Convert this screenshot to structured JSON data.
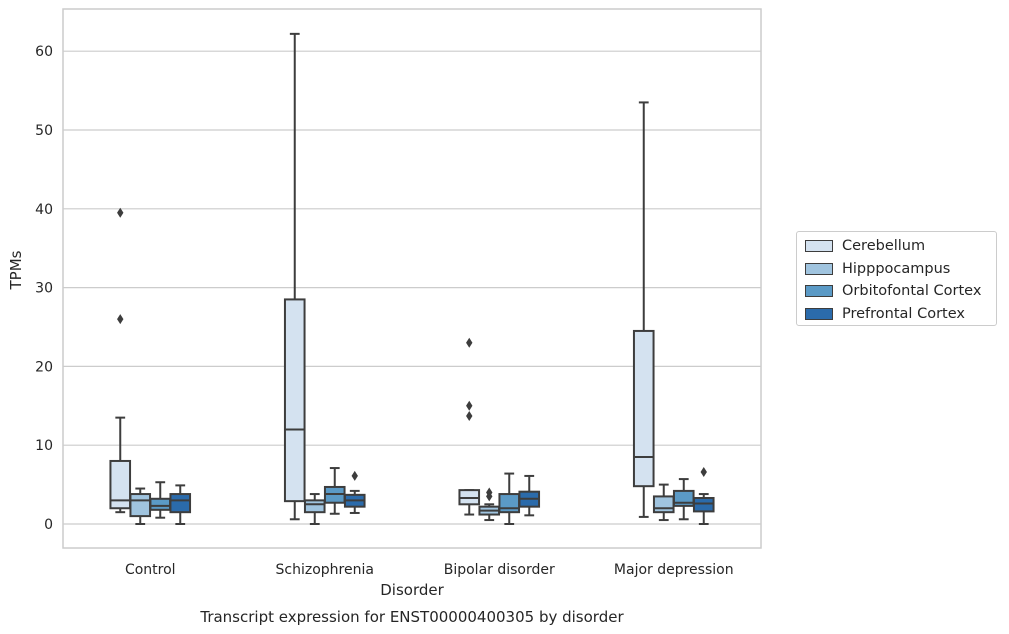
{
  "chart_data": {
    "type": "box",
    "title": "Transcript expression for ENST00000400305 by disorder",
    "xlabel": "Disorder",
    "ylabel": "TPMs",
    "ylim": [
      -3,
      65
    ],
    "yticks": [
      0,
      10,
      20,
      30,
      40,
      50,
      60
    ],
    "grid": true,
    "legend_position": "center-right",
    "categories": [
      "Control",
      "Schizophrenia",
      "Bipolar disorder",
      "Major depression"
    ],
    "series": [
      {
        "name": "Cerebellum",
        "color": "#d4e2f0",
        "boxes": [
          {
            "whislo": 1.5,
            "q1": 2.0,
            "med": 3.0,
            "q3": 8.0,
            "whishi": 13.5,
            "fliers": [
              26.0,
              39.5
            ]
          },
          {
            "whislo": 0.6,
            "q1": 2.9,
            "med": 12.0,
            "q3": 28.5,
            "whishi": 62.2,
            "fliers": []
          },
          {
            "whislo": 1.2,
            "q1": 2.5,
            "med": 3.3,
            "q3": 4.3,
            "whishi": 4.3,
            "fliers": [
              13.7,
              15.0,
              23.0
            ]
          },
          {
            "whislo": 0.9,
            "q1": 4.8,
            "med": 8.5,
            "q3": 24.5,
            "whishi": 53.5,
            "fliers": []
          }
        ]
      },
      {
        "name": "Hipppocampus",
        "color": "#a0c4df",
        "boxes": [
          {
            "whislo": 0.0,
            "q1": 1.0,
            "med": 3.0,
            "q3": 3.8,
            "whishi": 4.5,
            "fliers": []
          },
          {
            "whislo": 0.0,
            "q1": 1.5,
            "med": 2.5,
            "q3": 3.0,
            "whishi": 3.8,
            "fliers": []
          },
          {
            "whislo": 0.5,
            "q1": 1.2,
            "med": 1.7,
            "q3": 2.2,
            "whishi": 2.5,
            "fliers": [
              3.5,
              4.0
            ]
          },
          {
            "whislo": 0.5,
            "q1": 1.5,
            "med": 2.0,
            "q3": 3.5,
            "whishi": 5.0,
            "fliers": []
          }
        ]
      },
      {
        "name": "Orbitofontal Cortex",
        "color": "#5b9ac6",
        "boxes": [
          {
            "whislo": 0.8,
            "q1": 1.8,
            "med": 2.3,
            "q3": 3.2,
            "whishi": 5.3,
            "fliers": []
          },
          {
            "whislo": 1.3,
            "q1": 2.7,
            "med": 3.8,
            "q3": 4.7,
            "whishi": 7.1,
            "fliers": []
          },
          {
            "whislo": 0.0,
            "q1": 1.5,
            "med": 2.0,
            "q3": 3.8,
            "whishi": 6.4,
            "fliers": []
          },
          {
            "whislo": 0.6,
            "q1": 2.3,
            "med": 2.7,
            "q3": 4.2,
            "whishi": 5.7,
            "fliers": []
          }
        ]
      },
      {
        "name": "Prefrontal Cortex",
        "color": "#2b6bab",
        "boxes": [
          {
            "whislo": 0.0,
            "q1": 1.5,
            "med": 3.0,
            "q3": 3.8,
            "whishi": 4.9,
            "fliers": []
          },
          {
            "whislo": 1.4,
            "q1": 2.2,
            "med": 3.0,
            "q3": 3.7,
            "whishi": 4.2,
            "fliers": [
              6.1
            ]
          },
          {
            "whislo": 1.1,
            "q1": 2.2,
            "med": 3.2,
            "q3": 4.1,
            "whishi": 6.1,
            "fliers": []
          },
          {
            "whislo": 0.0,
            "q1": 1.6,
            "med": 2.6,
            "q3": 3.3,
            "whishi": 3.8,
            "fliers": [
              6.6
            ]
          }
        ]
      }
    ]
  }
}
